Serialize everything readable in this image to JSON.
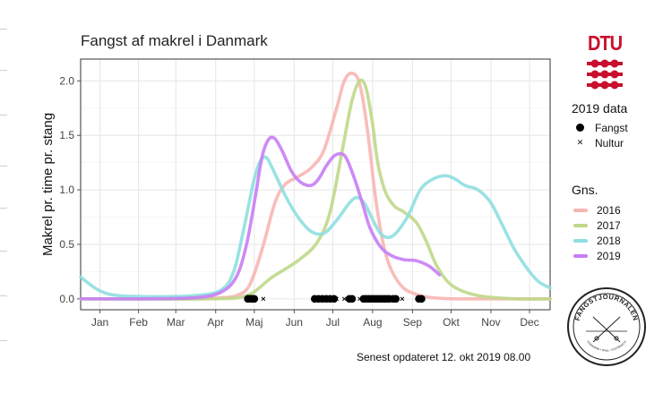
{
  "title": "Fangst af makrel i Danmark",
  "footnote": "Senest opdateret 12. okt 2019 08.00",
  "logo": {
    "text": "DTU",
    "color": "#c8102e"
  },
  "badge": {
    "text": "FANGSTJOURNALEN",
    "subtext": "STANDARD • PAUL • SYSTEMATIK"
  },
  "chart_data": {
    "type": "line",
    "title": "Fangst af makrel i Danmark",
    "xlabel": "",
    "ylabel": "Makrel pr. time pr. stang",
    "x_domain": [
      1,
      366
    ],
    "ylim": [
      -0.1,
      2.2
    ],
    "yticks": [
      0.0,
      0.5,
      1.0,
      1.5,
      2.0
    ],
    "ytick_labels": [
      "0.0",
      "0.5",
      "1.0",
      "1.5",
      "2.0"
    ],
    "months": [
      {
        "label": "Jan",
        "day": 16
      },
      {
        "label": "Feb",
        "day": 46
      },
      {
        "label": "Mar",
        "day": 75
      },
      {
        "label": "Apr",
        "day": 106
      },
      {
        "label": "Maj",
        "day": 136
      },
      {
        "label": "Jun",
        "day": 167
      },
      {
        "label": "Jul",
        "day": 197
      },
      {
        "label": "Aug",
        "day": 228
      },
      {
        "label": "Sep",
        "day": 259
      },
      {
        "label": "Okt",
        "day": 289
      },
      {
        "label": "Nov",
        "day": 320
      },
      {
        "label": "Dec",
        "day": 350
      }
    ],
    "grid": true,
    "legend_position": "right",
    "legend_title": "Gns.",
    "series": [
      {
        "name": "2016",
        "color": "#f7b6b2",
        "x": [
          1,
          40,
          90,
          110,
          122,
          132,
          142,
          152,
          160,
          170,
          180,
          190,
          200,
          206,
          212,
          218,
          224,
          230,
          236,
          242,
          252,
          265,
          275,
          290,
          310,
          340,
          366
        ],
        "y": [
          0,
          0,
          0,
          0.01,
          0.03,
          0.12,
          0.45,
          0.88,
          1.05,
          1.12,
          1.2,
          1.36,
          1.75,
          2.0,
          2.07,
          1.97,
          1.55,
          0.95,
          0.52,
          0.28,
          0.1,
          0.03,
          0.01,
          0,
          0,
          0,
          0
        ]
      },
      {
        "name": "2017",
        "color": "#bfd88a",
        "x": [
          1,
          100,
          130,
          150,
          170,
          185,
          195,
          205,
          212,
          218,
          223,
          228,
          232,
          238,
          245,
          252,
          262,
          270,
          278,
          290,
          310,
          340,
          366
        ],
        "y": [
          0,
          0,
          0.03,
          0.2,
          0.35,
          0.52,
          0.8,
          1.4,
          1.82,
          2.0,
          1.93,
          1.6,
          1.25,
          0.98,
          0.85,
          0.8,
          0.7,
          0.52,
          0.3,
          0.12,
          0.03,
          0,
          0
        ]
      },
      {
        "name": "2018",
        "color": "#8fdfe0",
        "x": [
          1,
          15,
          30,
          60,
          90,
          110,
          120,
          128,
          135,
          140,
          145,
          150,
          160,
          170,
          180,
          190,
          200,
          210,
          216,
          222,
          230,
          236,
          244,
          255,
          265,
          275,
          285,
          292,
          300,
          310,
          320,
          330,
          340,
          355,
          366
        ],
        "y": [
          0.2,
          0.08,
          0.03,
          0.02,
          0.03,
          0.08,
          0.25,
          0.65,
          1.05,
          1.25,
          1.3,
          1.2,
          0.95,
          0.75,
          0.62,
          0.6,
          0.72,
          0.88,
          0.93,
          0.87,
          0.68,
          0.58,
          0.58,
          0.75,
          1.0,
          1.1,
          1.13,
          1.1,
          1.04,
          1.0,
          0.88,
          0.65,
          0.42,
          0.18,
          0.1
        ]
      },
      {
        "name": "2019",
        "color": "#c77ef5",
        "x": [
          1,
          50,
          90,
          110,
          122,
          130,
          137,
          142,
          147,
          152,
          158,
          165,
          172,
          180,
          186,
          192,
          198,
          204,
          208,
          214,
          220,
          226,
          234,
          242,
          252,
          262,
          272,
          280
        ],
        "y": [
          0,
          0,
          0.01,
          0.06,
          0.2,
          0.5,
          0.95,
          1.3,
          1.46,
          1.47,
          1.35,
          1.17,
          1.07,
          1.04,
          1.1,
          1.22,
          1.31,
          1.33,
          1.28,
          1.1,
          0.88,
          0.65,
          0.48,
          0.4,
          0.36,
          0.35,
          0.3,
          0.22
        ]
      }
    ],
    "points_2019": {
      "legend_title": "2019 data",
      "fangst_label": "Fangst",
      "nultur_label": "Nultur",
      "y": 0,
      "fangst": [
        131,
        132,
        133,
        134,
        135,
        136,
        183,
        186,
        189,
        192,
        195,
        198,
        210,
        212,
        221,
        223,
        225,
        227,
        229,
        231,
        233,
        235,
        237,
        239,
        241,
        244,
        246,
        264,
        266
      ],
      "nultur": [
        143,
        190,
        200,
        206,
        213,
        218,
        251
      ]
    }
  }
}
